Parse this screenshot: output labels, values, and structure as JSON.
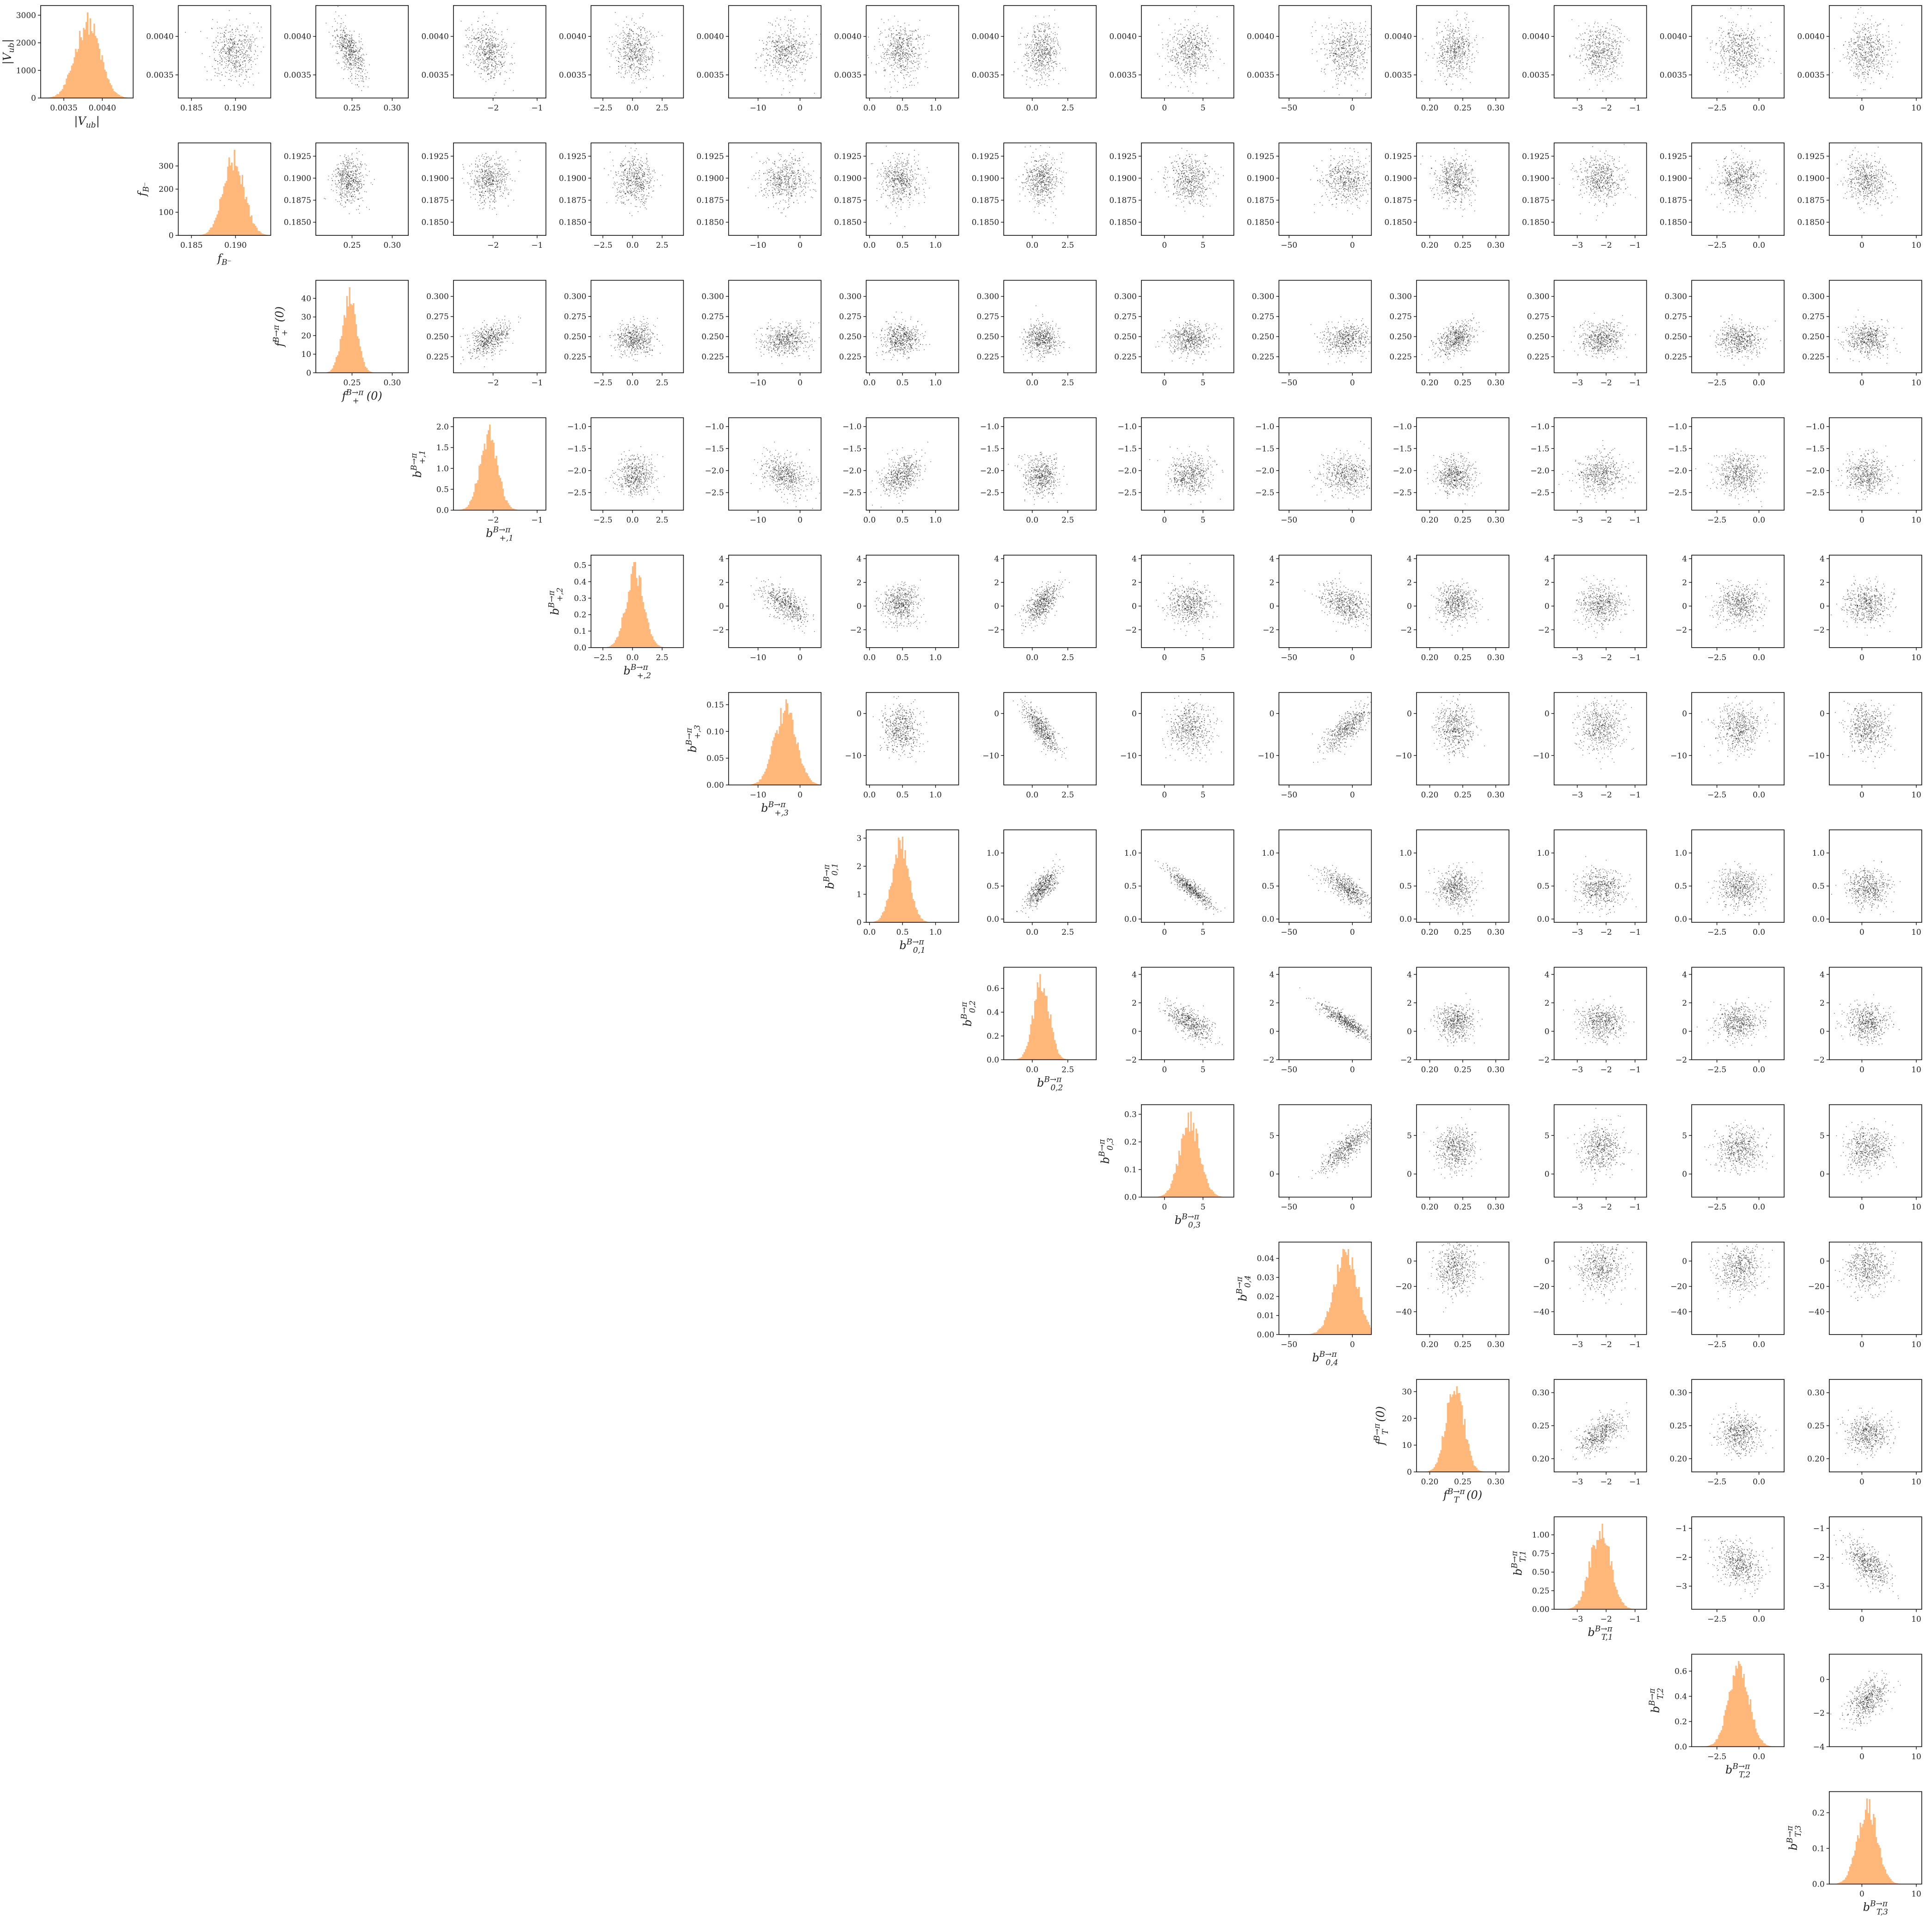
{
  "chart_data": {
    "type": "corner",
    "description": "",
    "diag_color": "#ffb77a",
    "scatter_color": "#000000",
    "parameters": [
      {
        "symbol": "|V",
        "sub": "ub",
        "suffix": "|",
        "mean": 0.00381,
        "sd": 0.00016,
        "range": [
          0.0032,
          0.0044
        ],
        "ticks": [
          0.0035,
          0.004
        ],
        "tick_labels": [
          "0.0035",
          "0.0040"
        ],
        "hist_max": 3100,
        "hist_ticks": [
          0,
          1000,
          2000,
          3000
        ],
        "hist_tick_labels": [
          "0",
          "1000",
          "2000",
          "3000"
        ]
      },
      {
        "symbol": "f",
        "sub": "B⁻",
        "suffix": "",
        "mean": 0.1898,
        "sd": 0.0012,
        "range": [
          0.1835,
          0.194
        ],
        "ticks": [
          0.185,
          0.19
        ],
        "tick_labels": [
          "0.185",
          "0.190"
        ],
        "scatter_ticks": [
          0.185,
          0.1875,
          0.19,
          0.1925
        ],
        "scatter_tick_labels": [
          "0.1850",
          "0.1875",
          "0.1900",
          "0.1925"
        ],
        "hist_max": 370,
        "hist_ticks": [
          0,
          100,
          200,
          300
        ],
        "hist_tick_labels": [
          "0",
          "100",
          "200",
          "300"
        ]
      },
      {
        "symbol": "f",
        "sub": "+",
        "sup": "B→π",
        "suffix": "(0)",
        "mean": 0.247,
        "sd": 0.009,
        "range": [
          0.205,
          0.32
        ],
        "ticks": [
          0.25,
          0.3
        ],
        "tick_labels": [
          "0.25",
          "0.30"
        ],
        "scatter_ticks": [
          0.225,
          0.25,
          0.275,
          0.3
        ],
        "scatter_tick_labels": [
          "0.225",
          "0.250",
          "0.275",
          "0.300"
        ],
        "hist_max": 46,
        "hist_ticks": [
          0,
          10,
          20,
          30,
          40
        ],
        "hist_tick_labels": [
          "0",
          "10",
          "20",
          "30",
          "40"
        ]
      },
      {
        "symbol": "b",
        "sub": "+,1",
        "sup": "B→π",
        "suffix": "",
        "mean": -2.1,
        "sd": 0.2,
        "range": [
          -2.9,
          -0.8
        ],
        "ticks": [
          -2,
          -1
        ],
        "tick_labels": [
          "−2",
          "−1"
        ],
        "scatter_ticks": [
          -2.5,
          -2,
          -1.5,
          -1
        ],
        "scatter_tick_labels": [
          "−2.5",
          "−2.0",
          "−1.5",
          "−1.0"
        ],
        "hist_max": 2.05,
        "hist_ticks": [
          0,
          0.5,
          1,
          1.5,
          2
        ],
        "hist_tick_labels": [
          "0.0",
          "0.5",
          "1.0",
          "1.5",
          "2.0"
        ]
      },
      {
        "symbol": "b",
        "sub": "+,2",
        "sup": "B→π",
        "suffix": "",
        "mean": 0.2,
        "sd": 0.75,
        "range": [
          -3.5,
          4.3
        ],
        "ticks": [
          -2.5,
          0,
          2.5
        ],
        "tick_labels": [
          "−2.5",
          "0.0",
          "2.5"
        ],
        "scatter_ticks": [
          -2,
          0,
          2,
          4
        ],
        "scatter_tick_labels": [
          "−2",
          "0",
          "2",
          "4"
        ],
        "hist_max": 0.52,
        "hist_ticks": [
          0,
          0.1,
          0.2,
          0.3,
          0.4,
          0.5
        ],
        "hist_tick_labels": [
          "0.0",
          "0.1",
          "0.2",
          "0.3",
          "0.4",
          "0.5"
        ]
      },
      {
        "symbol": "b",
        "sub": "+,3",
        "sup": "B→π",
        "suffix": "",
        "mean": -3.5,
        "sd": 2.6,
        "range": [
          -17,
          5
        ],
        "ticks": [
          -10,
          0
        ],
        "tick_labels": [
          "−10",
          "0"
        ],
        "scatter_ticks": [
          -10,
          0
        ],
        "scatter_tick_labels": [
          "−10",
          "0"
        ],
        "hist_max": 0.16,
        "hist_ticks": [
          0,
          0.05,
          0.1,
          0.15
        ],
        "hist_tick_labels": [
          "0.00",
          "0.05",
          "0.10",
          "0.15"
        ]
      },
      {
        "symbol": "b",
        "sub": "0,1",
        "sup": "B→π",
        "suffix": "",
        "mean": 0.47,
        "sd": 0.13,
        "range": [
          -0.05,
          1.35
        ],
        "ticks": [
          0,
          0.5,
          1
        ],
        "tick_labels": [
          "0.0",
          "0.5",
          "1.0"
        ],
        "scatter_ticks": [
          0,
          0.5,
          1
        ],
        "scatter_tick_labels": [
          "0.0",
          "0.5",
          "1.0"
        ],
        "hist_max": 3.05,
        "hist_ticks": [
          0,
          1,
          2,
          3
        ],
        "hist_tick_labels": [
          "0",
          "1",
          "2",
          "3"
        ]
      },
      {
        "symbol": "b",
        "sub": "0,2",
        "sup": "B→π",
        "suffix": "",
        "mean": 0.65,
        "sd": 0.55,
        "range": [
          -2,
          4.5
        ],
        "ticks": [
          0,
          2.5
        ],
        "tick_labels": [
          "0.0",
          "2.5"
        ],
        "scatter_ticks": [
          -2,
          0,
          2,
          4
        ],
        "scatter_tick_labels": [
          "−2",
          "0",
          "2",
          "4"
        ],
        "hist_max": 0.72,
        "hist_ticks": [
          0,
          0.2,
          0.4,
          0.6
        ],
        "hist_tick_labels": [
          "0.0",
          "0.2",
          "0.4",
          "0.6"
        ]
      },
      {
        "symbol": "b",
        "sub": "0,3",
        "sup": "B→π",
        "suffix": "",
        "mean": 3.3,
        "sd": 1.3,
        "range": [
          -3,
          9
        ],
        "ticks": [
          0,
          5
        ],
        "tick_labels": [
          "0",
          "5"
        ],
        "scatter_ticks": [
          0,
          5
        ],
        "scatter_tick_labels": [
          "0",
          "5"
        ],
        "hist_max": 0.31,
        "hist_ticks": [
          0,
          0.1,
          0.2,
          0.3
        ],
        "hist_tick_labels": [
          "0.0",
          "0.1",
          "0.2",
          "0.3"
        ]
      },
      {
        "symbol": "b",
        "sub": "0,4",
        "sup": "B→π",
        "suffix": "",
        "mean": -5,
        "sd": 9,
        "range": [
          -58,
          15
        ],
        "ticks": [
          -50,
          0
        ],
        "tick_labels": [
          "−50",
          "0"
        ],
        "scatter_ticks": [
          -40,
          -20,
          0,
          20
        ],
        "scatter_tick_labels": [
          "−40",
          "−20",
          "0",
          "20"
        ],
        "hist_max": 0.045,
        "hist_ticks": [
          0,
          0.01,
          0.02,
          0.03,
          0.04
        ],
        "hist_tick_labels": [
          "0.00",
          "0.01",
          "0.02",
          "0.03",
          "0.04"
        ]
      },
      {
        "symbol": "f",
        "sub": "T",
        "sup": "B→π",
        "suffix": "(0)",
        "mean": 0.238,
        "sd": 0.013,
        "range": [
          0.18,
          0.32
        ],
        "ticks": [
          0.2,
          0.25,
          0.3
        ],
        "tick_labels": [
          "0.20",
          "0.25",
          "0.30"
        ],
        "scatter_ticks": [
          0.2,
          0.25,
          0.3
        ],
        "scatter_tick_labels": [
          "0.20",
          "0.25",
          "0.30"
        ],
        "hist_max": 32,
        "hist_ticks": [
          0,
          10,
          20,
          30
        ],
        "hist_tick_labels": [
          "0",
          "10",
          "20",
          "30"
        ]
      },
      {
        "symbol": "b",
        "sub": "T,1",
        "sup": "B→π",
        "suffix": "",
        "mean": -2.2,
        "sd": 0.35,
        "range": [
          -3.8,
          -0.6
        ],
        "ticks": [
          -3,
          -2,
          -1
        ],
        "tick_labels": [
          "−3",
          "−2",
          "−1"
        ],
        "scatter_ticks": [
          -3,
          -2,
          -1
        ],
        "scatter_tick_labels": [
          "−3",
          "−2",
          "−1"
        ],
        "hist_max": 1.15,
        "hist_ticks": [
          0,
          0.25,
          0.5,
          0.75,
          1
        ],
        "hist_tick_labels": [
          "0.00",
          "0.25",
          "0.50",
          "0.75",
          "1.00"
        ]
      },
      {
        "symbol": "b",
        "sub": "T,2",
        "sup": "B→π",
        "suffix": "",
        "mean": -1.2,
        "sd": 0.6,
        "range": [
          -4,
          1.5
        ],
        "ticks": [
          -2.5,
          0
        ],
        "tick_labels": [
          "−2.5",
          "0.0"
        ],
        "scatter_ticks": [
          -4,
          -2,
          0
        ],
        "scatter_tick_labels": [
          "−4",
          "−2",
          "0"
        ],
        "hist_max": 0.68,
        "hist_ticks": [
          0,
          0.2,
          0.4,
          0.6
        ],
        "hist_tick_labels": [
          "0.0",
          "0.2",
          "0.4",
          "0.6"
        ]
      },
      {
        "symbol": "b",
        "sub": "T,3",
        "sup": "B→π",
        "suffix": "",
        "mean": 1,
        "sd": 1.8,
        "range": [
          -6,
          11
        ],
        "ticks": [
          0,
          10
        ],
        "tick_labels": [
          "0",
          "10"
        ],
        "scatter_ticks": [
          0,
          10
        ],
        "scatter_tick_labels": [
          "0",
          "10"
        ],
        "hist_max": 0.24,
        "hist_ticks": [
          0,
          0.1,
          0.2
        ],
        "hist_tick_labels": [
          "0.0",
          "0.1",
          "0.2"
        ]
      }
    ],
    "correlations": [
      {
        "pair": [
          0,
          2
        ],
        "r": -0.6
      },
      {
        "pair": [
          0,
          3
        ],
        "r": -0.3
      },
      {
        "pair": [
          2,
          3
        ],
        "r": 0.4
      },
      {
        "pair": [
          2,
          10
        ],
        "r": 0.4
      },
      {
        "pair": [
          3,
          5
        ],
        "r": -0.3
      },
      {
        "pair": [
          3,
          6
        ],
        "r": 0.4
      },
      {
        "pair": [
          4,
          5
        ],
        "r": -0.6
      },
      {
        "pair": [
          4,
          7
        ],
        "r": 0.6
      },
      {
        "pair": [
          4,
          9
        ],
        "r": -0.4
      },
      {
        "pair": [
          5,
          7
        ],
        "r": -0.8
      },
      {
        "pair": [
          5,
          9
        ],
        "r": 0.8
      },
      {
        "pair": [
          6,
          7
        ],
        "r": 0.75
      },
      {
        "pair": [
          6,
          8
        ],
        "r": -0.9
      },
      {
        "pair": [
          6,
          9
        ],
        "r": -0.75
      },
      {
        "pair": [
          7,
          8
        ],
        "r": -0.6
      },
      {
        "pair": [
          7,
          9
        ],
        "r": -0.9
      },
      {
        "pair": [
          8,
          9
        ],
        "r": 0.8
      },
      {
        "pair": [
          10,
          11
        ],
        "r": 0.6
      },
      {
        "pair": [
          11,
          12
        ],
        "r": -0.3
      },
      {
        "pair": [
          11,
          13
        ],
        "r": -0.6
      },
      {
        "pair": [
          12,
          13
        ],
        "r": 0.5
      }
    ]
  }
}
